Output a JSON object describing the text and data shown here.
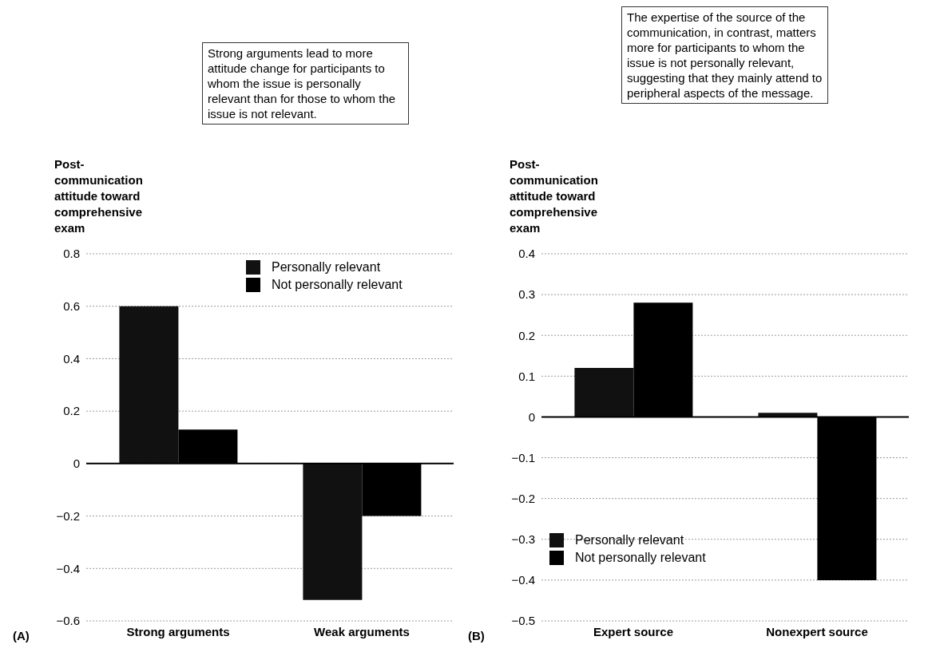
{
  "chart_data": [
    {
      "type": "bar",
      "ylabel": "Post-communication attitude toward comprehensive exam",
      "categories": [
        "Strong arguments",
        "Weak arguments"
      ],
      "series": [
        {
          "name": "Personally relevant",
          "color": "#111111",
          "values": [
            0.6,
            -0.52
          ]
        },
        {
          "name": "Not personally relevant",
          "color": "#000000",
          "values": [
            0.13,
            -0.2
          ]
        }
      ],
      "ylim": [
        -0.6,
        0.8
      ],
      "yticks": [
        {
          "value": -0.6,
          "label": "−0.6"
        },
        {
          "value": -0.4,
          "label": "−0.4"
        },
        {
          "value": -0.2,
          "label": "−0.2"
        },
        0,
        0.2,
        0.4,
        0.6,
        0.8
      ],
      "grid": "y",
      "legend": "top right",
      "annotations": [
        "Strong arguments lead to more attitude change for participants to whom the issue is personally relevant than for those to whom the issue is not relevant.",
        "(A)"
      ]
    },
    {
      "type": "bar",
      "ylabel": "Post-communication attitude toward comprehensive exam",
      "categories": [
        "Expert source",
        "Nonexpert source"
      ],
      "series": [
        {
          "name": "Personally relevant",
          "color": "#111111",
          "values": [
            0.12,
            0.01
          ]
        },
        {
          "name": "Not personally relevant",
          "color": "#000000",
          "values": [
            0.28,
            -0.4
          ]
        }
      ],
      "ylim": [
        -0.5,
        0.4
      ],
      "yticks": [
        {
          "value": -0.5,
          "label": "−0.5"
        },
        {
          "value": -0.4,
          "label": "−0.4"
        },
        {
          "value": -0.3,
          "label": "−0.3"
        },
        {
          "value": -0.2,
          "label": "−0.2"
        },
        {
          "value": -0.1,
          "label": "−0.1"
        },
        0,
        0.1,
        0.2,
        0.3,
        0.4
      ],
      "grid": "y",
      "legend": "bottom left",
      "annotations": [
        "The expertise of the source of the communication, in contrast, matters more for participants to whom the issue is not personally relevant, suggesting that they mainly attend to peripheral aspects of the message.",
        "(B)"
      ]
    }
  ]
}
